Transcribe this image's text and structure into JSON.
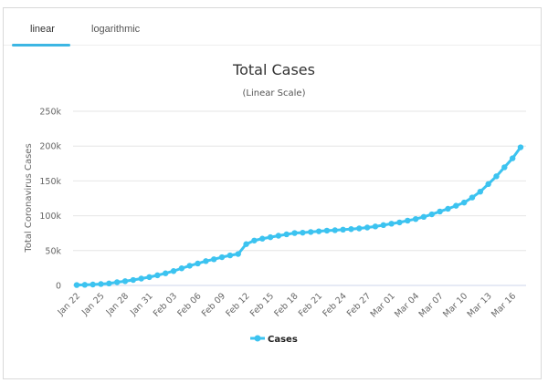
{
  "tabs": [
    {
      "label": "linear",
      "active": true
    },
    {
      "label": "logarithmic",
      "active": false
    }
  ],
  "colors": {
    "series": "#3cc3f0",
    "accent": "#3cb6e3",
    "grid": "#e6e6e6"
  },
  "chart_data": {
    "type": "line",
    "title": "Total Cases",
    "subtitle": "(Linear Scale)",
    "xlabel": "",
    "ylabel": "Total Coronavirus Cases",
    "ylim": [
      0,
      250000
    ],
    "yticks": [
      0,
      50000,
      100000,
      150000,
      200000,
      250000
    ],
    "ytick_labels": [
      "0",
      "50k",
      "100k",
      "150k",
      "200k",
      "250k"
    ],
    "grid": true,
    "legend": {
      "position": "bottom-center",
      "entries": [
        "Cases"
      ]
    },
    "xtick_labels": [
      "Jan 22",
      "Jan 25",
      "Jan 28",
      "Jan 31",
      "Feb 03",
      "Feb 06",
      "Feb 09",
      "Feb 12",
      "Feb 15",
      "Feb 18",
      "Feb 21",
      "Feb 24",
      "Feb 27",
      "Mar 01",
      "Mar 04",
      "Mar 07",
      "Mar 10",
      "Mar 13",
      "Mar 16"
    ],
    "series": [
      {
        "name": "Cases",
        "x": [
          "Jan 22",
          "Jan 23",
          "Jan 24",
          "Jan 25",
          "Jan 26",
          "Jan 27",
          "Jan 28",
          "Jan 29",
          "Jan 30",
          "Jan 31",
          "Feb 01",
          "Feb 02",
          "Feb 03",
          "Feb 04",
          "Feb 05",
          "Feb 06",
          "Feb 07",
          "Feb 08",
          "Feb 09",
          "Feb 10",
          "Feb 11",
          "Feb 12",
          "Feb 13",
          "Feb 14",
          "Feb 15",
          "Feb 16",
          "Feb 17",
          "Feb 18",
          "Feb 19",
          "Feb 20",
          "Feb 21",
          "Feb 22",
          "Feb 23",
          "Feb 24",
          "Feb 25",
          "Feb 26",
          "Feb 27",
          "Feb 28",
          "Feb 29",
          "Mar 01",
          "Mar 02",
          "Mar 03",
          "Mar 04",
          "Mar 05",
          "Mar 06",
          "Mar 07",
          "Mar 08",
          "Mar 09",
          "Mar 10",
          "Mar 11",
          "Mar 12",
          "Mar 13",
          "Mar 14",
          "Mar 15",
          "Mar 16",
          "Mar 17"
        ],
        "values": [
          580,
          845,
          1317,
          2015,
          2800,
          4581,
          6058,
          7813,
          9823,
          11950,
          14553,
          17391,
          20630,
          24545,
          28266,
          31439,
          34876,
          37552,
          40553,
          43099,
          45134,
          59287,
          64438,
          67100,
          69197,
          71329,
          73332,
          75184,
          75700,
          76677,
          77673,
          78651,
          79205,
          80087,
          80828,
          81820,
          83112,
          84615,
          86604,
          88585,
          90443,
          93016,
          95314,
          98425,
          102050,
          106099,
          109991,
          114381,
          118948,
          126214,
          134576,
          145483,
          156653,
          169593,
          182490,
          198234
        ]
      }
    ]
  }
}
